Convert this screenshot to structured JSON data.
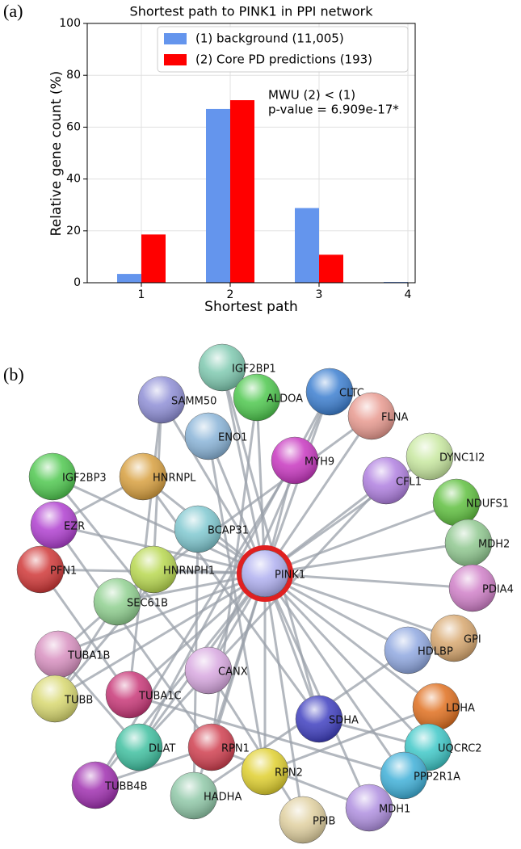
{
  "panel_labels": [
    "(a)",
    "(b)"
  ],
  "chart_data": {
    "type": "bar",
    "title": "Shortest path to PINK1 in PPI network",
    "xlabel": "Shortest path",
    "ylabel": "Relative gene count (%)",
    "categories": [
      "1",
      "2",
      "3",
      "4"
    ],
    "series": [
      {
        "name": "(1) background (11,005)",
        "color": "#6495ed",
        "values": [
          3.4,
          67,
          28.8,
          0.3
        ]
      },
      {
        "name": "(2) Core PD predictions (193)",
        "color": "#ff0000",
        "values": [
          18.6,
          70.4,
          10.8,
          0
        ]
      }
    ],
    "ylim": [
      0,
      100
    ],
    "yticks": [
      0,
      20,
      40,
      60,
      80,
      100
    ],
    "grid": true,
    "legend": "upper center",
    "annotations": [
      "MWU (2) < (1)",
      "p-value = 6.909e-17*"
    ]
  },
  "network": {
    "nodes": [
      {
        "label": "IGF2BP1"
      },
      {
        "label": "CLTC"
      },
      {
        "label": "SAMM50"
      },
      {
        "label": "ALDOA"
      },
      {
        "label": "FLNA"
      },
      {
        "label": "ENO1"
      },
      {
        "label": "MYH9"
      },
      {
        "label": "DYNC1I2"
      },
      {
        "label": "IGF2BP3"
      },
      {
        "label": "HNRNPL"
      },
      {
        "label": "CFL1"
      },
      {
        "label": "NDUFS1"
      },
      {
        "label": "EZR"
      },
      {
        "label": "BCAP31"
      },
      {
        "label": "MDH2"
      },
      {
        "label": "HNRNPH1"
      },
      {
        "label": "PFN1"
      },
      {
        "label": "PINK1"
      },
      {
        "label": "PDIA4"
      },
      {
        "label": "SEC61B"
      },
      {
        "label": "GPI"
      },
      {
        "label": "HDLBP"
      },
      {
        "label": "TUBA1B"
      },
      {
        "label": "CANX"
      },
      {
        "label": "TUBB"
      },
      {
        "label": "TUBA1C"
      },
      {
        "label": "LDHA"
      },
      {
        "label": "SDHA"
      },
      {
        "label": "UQCRC2"
      },
      {
        "label": "DLAT"
      },
      {
        "label": "RPN1"
      },
      {
        "label": "RPN2"
      },
      {
        "label": "PPP2R1A"
      },
      {
        "label": "TUBB4B"
      },
      {
        "label": "HADHA"
      },
      {
        "label": "MDH1"
      },
      {
        "label": "PPIB"
      }
    ]
  }
}
